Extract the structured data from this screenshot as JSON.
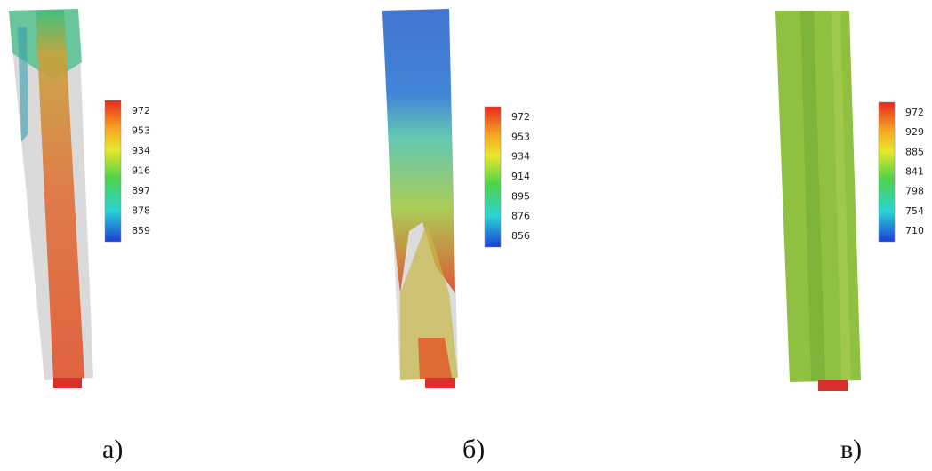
{
  "panels": [
    {
      "label": "а)",
      "colorbar": [
        972,
        953,
        934,
        916,
        897,
        878,
        859
      ]
    },
    {
      "label": "б)",
      "colorbar": [
        972,
        953,
        934,
        914,
        895,
        876,
        856
      ]
    },
    {
      "label": "в)",
      "colorbar": [
        972,
        929,
        885,
        841,
        798,
        754,
        710
      ]
    }
  ]
}
